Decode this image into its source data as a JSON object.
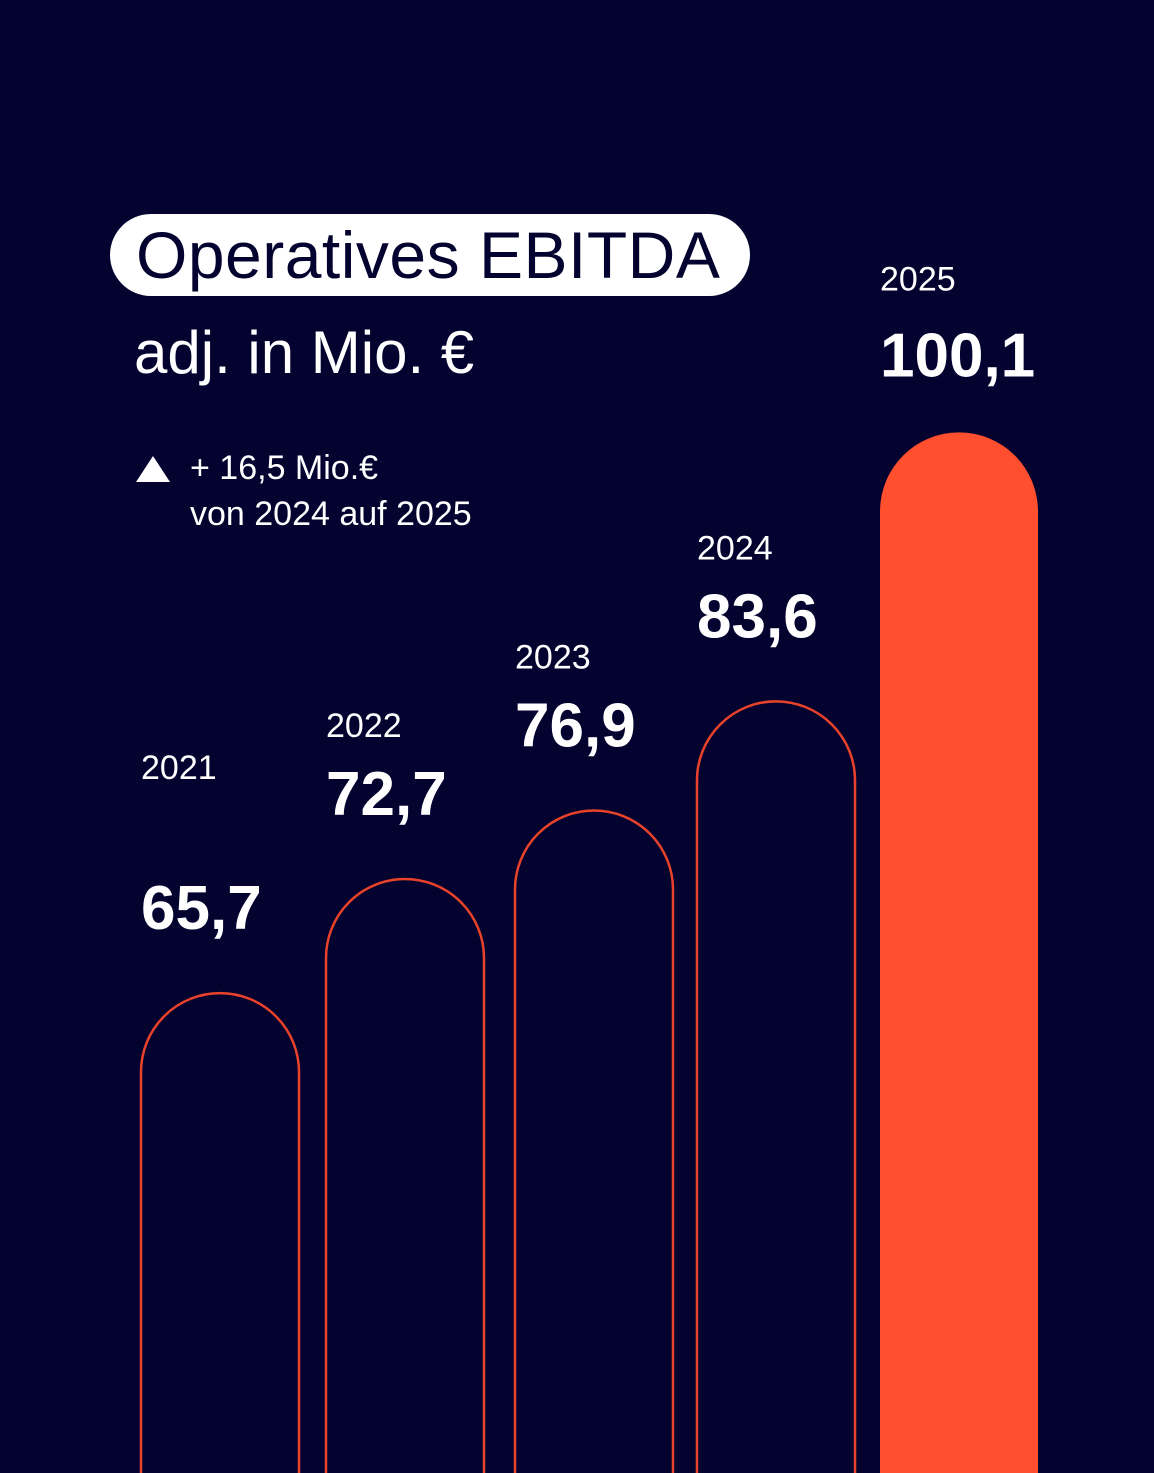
{
  "title": "Operatives EBITDA",
  "subtitle": "adj. in Mio. €",
  "delta": {
    "icon": "triangle-up-icon",
    "line1": "+ 16,5 Mio.€",
    "line2": "von 2024 auf 2025"
  },
  "colors": {
    "background": "#04022e",
    "accent": "#ff4f2e",
    "outline": "#e8432a",
    "text": "#ffffff"
  },
  "chart_data": {
    "type": "bar",
    "categories": [
      "2021",
      "2022",
      "2023",
      "2024",
      "2025"
    ],
    "values": [
      65.7,
      72.7,
      76.9,
      83.6,
      100.1
    ],
    "value_labels": [
      "65,7",
      "72,7",
      "76,9",
      "83,6",
      "100,1"
    ],
    "highlighted": "2025",
    "title": "Operatives EBITDA",
    "subtitle": "adj. in Mio. €",
    "xlabel": "",
    "ylabel": "",
    "grid": false,
    "legend": "none"
  }
}
